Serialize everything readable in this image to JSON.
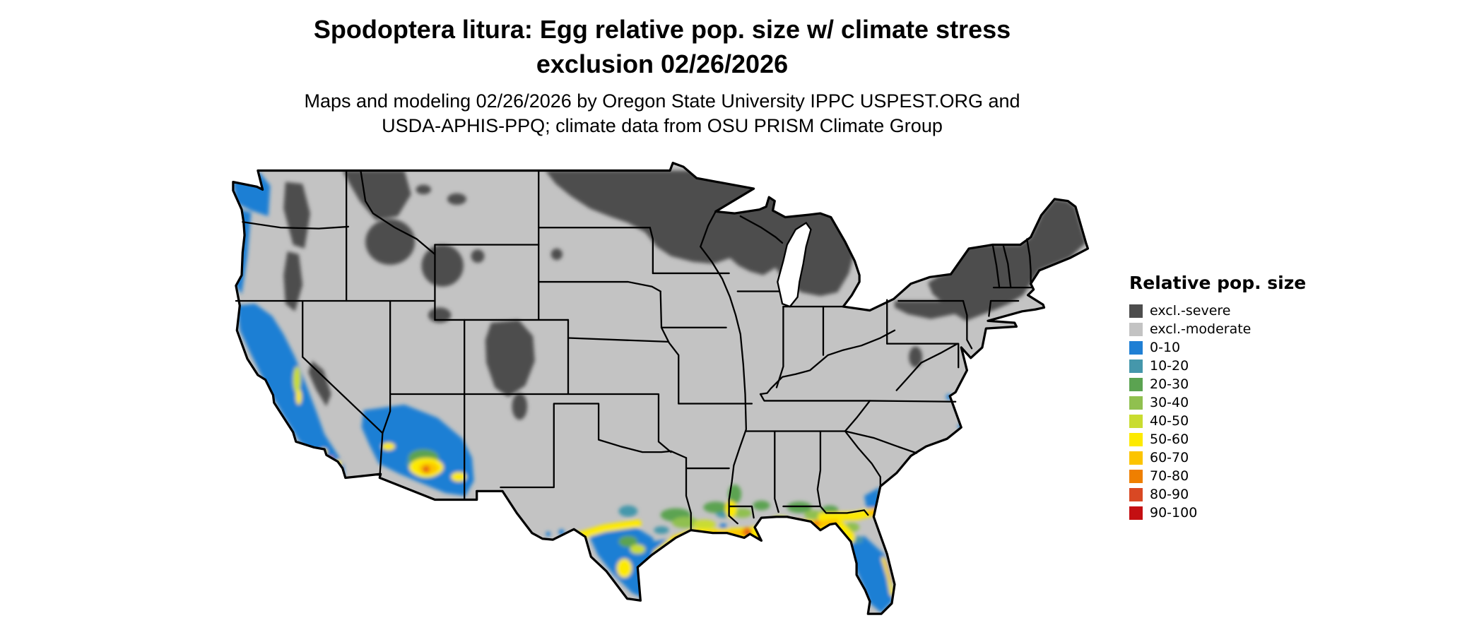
{
  "title": {
    "line1": "Spodoptera litura: Egg relative pop. size w/ climate stress",
    "line2": "exclusion 02/26/2026"
  },
  "subtitle": {
    "line1": "Maps and modeling 02/26/2026 by Oregon State University IPPC USPEST.ORG and",
    "line2": "USDA-APHIS-PPQ; climate data from OSU PRISM Climate Group"
  },
  "legend": {
    "title": "Relative pop. size",
    "items": [
      {
        "label": "excl.-severe",
        "color": "#4d4d4d"
      },
      {
        "label": "excl.-moderate",
        "color": "#c3c3c3"
      },
      {
        "label": "0-10",
        "color": "#1f7fd4"
      },
      {
        "label": "10-20",
        "color": "#4597ab"
      },
      {
        "label": "20-30",
        "color": "#5ba351"
      },
      {
        "label": "30-40",
        "color": "#90c04f"
      },
      {
        "label": "40-50",
        "color": "#c9dc30"
      },
      {
        "label": "50-60",
        "color": "#fdea00"
      },
      {
        "label": "60-70",
        "color": "#fcc400"
      },
      {
        "label": "70-80",
        "color": "#ef7f00"
      },
      {
        "label": "80-90",
        "color": "#d94823"
      },
      {
        "label": "90-100",
        "color": "#c40f12"
      }
    ]
  },
  "map": {
    "border_color": "#000000",
    "background_color": "#ffffff",
    "base_fill": "#c3c3c3"
  }
}
